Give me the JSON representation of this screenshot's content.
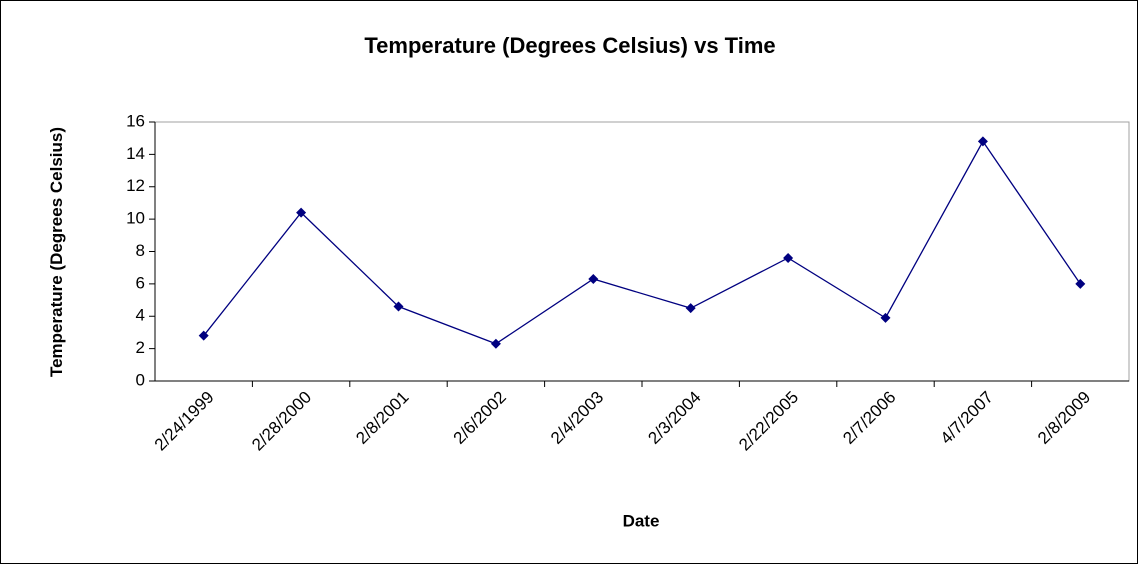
{
  "chart_data": {
    "type": "line",
    "title": "Temperature (Degrees Celsius) vs Time",
    "x_label": "Date",
    "y_label": "Temperature (Degrees Celsius)",
    "categories": [
      "2/24/1999",
      "2/28/2000",
      "2/8/2001",
      "2/6/2002",
      "2/4/2003",
      "2/3/2004",
      "2/22/2005",
      "2/7/2006",
      "4/7/2007",
      "2/8/2009"
    ],
    "series": [
      {
        "name": "Temperature",
        "color": "#000080",
        "values": [
          2.8,
          10.4,
          4.6,
          2.3,
          6.3,
          4.5,
          7.6,
          3.9,
          14.8,
          6.0
        ]
      }
    ],
    "ylim": [
      0,
      16
    ],
    "yticks": [
      0,
      2,
      4,
      6,
      8,
      10,
      12,
      14,
      16
    ],
    "grid": false,
    "legend": false
  }
}
